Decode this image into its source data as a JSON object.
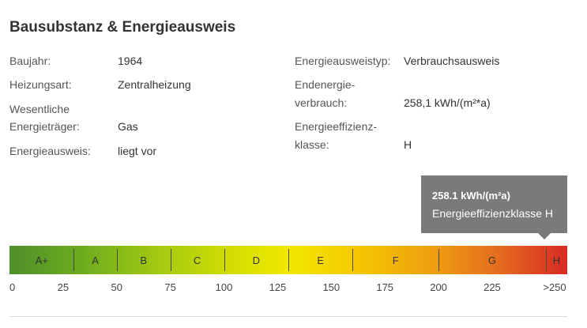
{
  "title": "Bausubstanz & Energieausweis",
  "left": {
    "baujahr_label": "Baujahr:",
    "baujahr_value": "1964",
    "heizungsart_label": "Heizungsart:",
    "heizungsart_value": "Zentralheizung",
    "energietraeger_label_1": "Wesentliche",
    "energietraeger_label_2": "Energieträger:",
    "energietraeger_value": "Gas",
    "energieausweis_label": "Energieausweis:",
    "energieausweis_value": "liegt vor"
  },
  "right": {
    "typ_label": "Energieausweistyp:",
    "typ_value": "Verbrauchsausweis",
    "verbrauch_label_1": "Endenergie-",
    "verbrauch_label_2": "verbrauch:",
    "verbrauch_value": "258,1 kWh/(m²*a)",
    "klasse_label_1": "Energieeffizienz-",
    "klasse_label_2": "klasse:",
    "klasse_value": "H"
  },
  "tooltip": {
    "line1": "258.1 kWh/(m²a)",
    "line2": "Energieeffizienzklasse H",
    "background": "#7a7a7a"
  },
  "scale": {
    "classes": [
      "A+",
      "A",
      "B",
      "C",
      "D",
      "E",
      "F",
      "G",
      "H"
    ],
    "ticks": [
      "0",
      "25",
      "50",
      "75",
      "100",
      "125",
      "150",
      "175",
      "200",
      "225",
      ">250"
    ],
    "class_bounds": [
      0,
      30,
      50,
      75,
      100,
      130,
      160,
      200,
      250,
      260
    ],
    "current_value": 258.1,
    "current_class": "H",
    "colors": {
      "low": "#4f8f2a",
      "mid": "#f2e800",
      "high": "#d82a22"
    }
  }
}
